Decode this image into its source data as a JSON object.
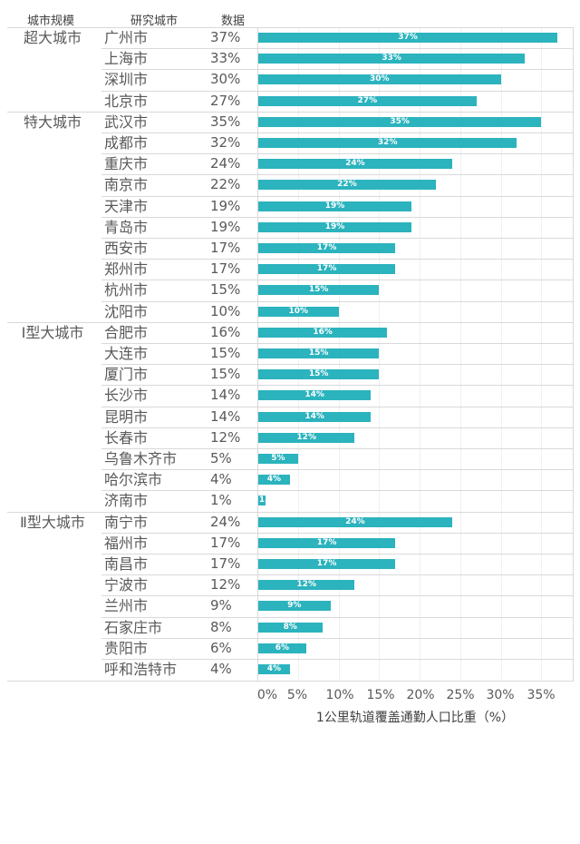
{
  "headers": {
    "category": "城市规模",
    "city": "研究城市",
    "value": "数据"
  },
  "colors": {
    "bar": "#2bb3be",
    "grid": "#d9d9d9",
    "text": "#595959"
  },
  "chart_data": {
    "type": "bar",
    "orientation": "horizontal",
    "title": "",
    "xlabel": "1公里轨道覆盖通勤人口比重（%）",
    "ylabel": "",
    "xlim": [
      0,
      0.38
    ],
    "x_ticks": [
      "0%",
      "5%",
      "10%",
      "15%",
      "20%",
      "25%",
      "30%",
      "35%"
    ],
    "grid": true,
    "legend": null,
    "groups": [
      {
        "name": "超大城市",
        "cities": [
          "广州市",
          "上海市",
          "深圳市",
          "北京市"
        ],
        "values": [
          37,
          33,
          30,
          27
        ]
      },
      {
        "name": "特大城市",
        "cities": [
          "武汉市",
          "成都市",
          "重庆市",
          "南京市",
          "天津市",
          "青岛市",
          "西安市",
          "郑州市",
          "杭州市",
          "沈阳市"
        ],
        "values": [
          35,
          32,
          24,
          22,
          19,
          19,
          17,
          17,
          15,
          10
        ]
      },
      {
        "name": "Ⅰ型大城市",
        "cities": [
          "合肥市",
          "大连市",
          "厦门市",
          "长沙市",
          "昆明市",
          "长春市",
          "乌鲁木齐市",
          "哈尔滨市",
          "济南市"
        ],
        "values": [
          16,
          15,
          15,
          14,
          14,
          12,
          5,
          4,
          1
        ]
      },
      {
        "name": "Ⅱ型大城市",
        "cities": [
          "南宁市",
          "福州市",
          "南昌市",
          "宁波市",
          "兰州市",
          "石家庄市",
          "贵阳市",
          "呼和浩特市"
        ],
        "values": [
          24,
          17,
          17,
          12,
          9,
          8,
          6,
          4
        ]
      }
    ],
    "categories": [
      "广州市",
      "上海市",
      "深圳市",
      "北京市",
      "武汉市",
      "成都市",
      "重庆市",
      "南京市",
      "天津市",
      "青岛市",
      "西安市",
      "郑州市",
      "杭州市",
      "沈阳市",
      "合肥市",
      "大连市",
      "厦门市",
      "长沙市",
      "昆明市",
      "长春市",
      "乌鲁木齐市",
      "哈尔滨市",
      "济南市",
      "南宁市",
      "福州市",
      "南昌市",
      "宁波市",
      "兰州市",
      "石家庄市",
      "贵阳市",
      "呼和浩特市"
    ],
    "values": [
      37,
      33,
      30,
      27,
      35,
      32,
      24,
      22,
      19,
      19,
      17,
      17,
      15,
      10,
      16,
      15,
      15,
      14,
      14,
      12,
      5,
      4,
      1,
      24,
      17,
      17,
      12,
      9,
      8,
      6,
      4
    ],
    "data_labels": [
      "37%",
      "33%",
      "30%",
      "27%",
      "35%",
      "32%",
      "24%",
      "22%",
      "19%",
      "19%",
      "17%",
      "17%",
      "15%",
      "10%",
      "16%",
      "15%",
      "15%",
      "14%",
      "14%",
      "12%",
      "5%",
      "4%",
      "1",
      "24%",
      "17%",
      "17%",
      "12%",
      "9%",
      "8%",
      "6%",
      "4%"
    ]
  }
}
